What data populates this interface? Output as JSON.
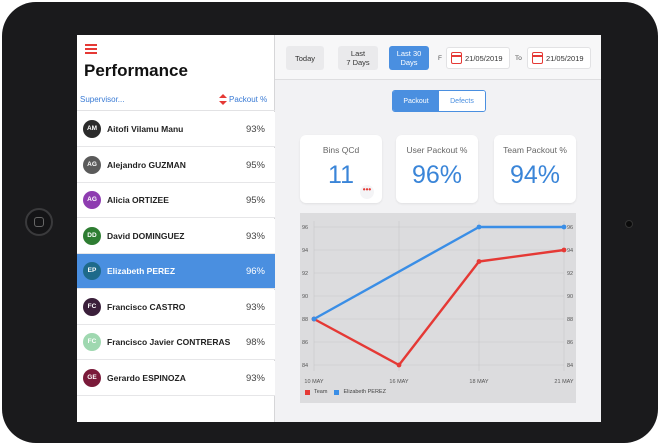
{
  "page": {
    "title": "Performance"
  },
  "list_header": {
    "supervisor": "Supervisor...",
    "packout": "Packout %"
  },
  "employees": [
    {
      "initials": "AM",
      "name": "Aitofi Vilamu Manu",
      "pct": "93%",
      "color": "#2b2b2b"
    },
    {
      "initials": "AG",
      "name": "Alejandro GUZMAN",
      "pct": "95%",
      "color": "#5a5a5a"
    },
    {
      "initials": "AG",
      "name": "Alicia ORTIZEE",
      "pct": "95%",
      "color": "#8e3cb0"
    },
    {
      "initials": "DD",
      "name": "David DOMINGUEZ",
      "pct": "93%",
      "color": "#2e7d32"
    },
    {
      "initials": "EP",
      "name": "Elizabeth PEREZ",
      "pct": "96%",
      "color": "#1e6a8a",
      "selected": true
    },
    {
      "initials": "FC",
      "name": "Francisco CASTRO",
      "pct": "93%",
      "color": "#3a1f3a"
    },
    {
      "initials": "FC",
      "name": "Francisco Javier CONTRERAS",
      "pct": "98%",
      "color": "#9fd8b0"
    },
    {
      "initials": "GE",
      "name": "Gerardo ESPINOZA",
      "pct": "93%",
      "color": "#7a1a3a"
    }
  ],
  "toolbar": {
    "today": "Today",
    "last7": "Last\n7 Days",
    "last30": "Last 30\nDays",
    "from_label": "F",
    "from_date": "21/05/2019",
    "to_label": "To",
    "to_date": "21/05/2019"
  },
  "segment": {
    "packout": "Packout",
    "defects": "Defects"
  },
  "cards": {
    "bins_label": "Bins QCd",
    "bins_value": "11",
    "user_label": "User Packout %",
    "user_value": "96%",
    "team_label": "Team Packout %",
    "team_value": "94%",
    "more": "•••"
  },
  "colors": {
    "accent": "#4a8fe0",
    "team": "#e53935",
    "user": "#3a8ee6"
  },
  "chart_data": {
    "type": "line",
    "categories": [
      "10 MAY",
      "16 MAY",
      "18 MAY",
      "21 MAY"
    ],
    "ylim": [
      84,
      96
    ],
    "yticks": [
      84,
      86,
      88,
      90,
      92,
      94,
      96
    ],
    "series": [
      {
        "name": "Team",
        "values": [
          88,
          84,
          93,
          94
        ],
        "color": "#e53935"
      },
      {
        "name": "Elizabeth PEREZ",
        "values": [
          88,
          null,
          96,
          96
        ],
        "color": "#3a8ee6"
      }
    ]
  }
}
